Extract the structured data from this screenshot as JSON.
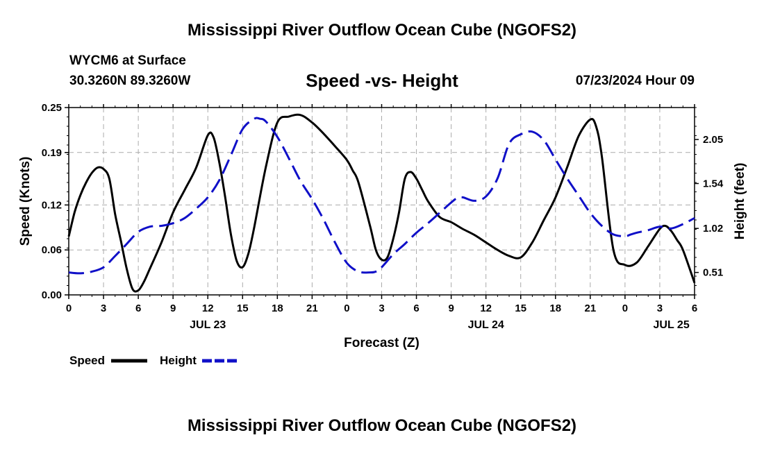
{
  "header": {
    "title": "Mississippi River Outflow Ocean Cube (NGOFS2)",
    "station": "WYCM6 at Surface",
    "coords": "30.3260N  89.3260W",
    "subtitle": "Speed -vs- Height",
    "datetime": "07/23/2024 Hour 09"
  },
  "footer": {
    "title": "Mississippi River Outflow Ocean Cube (NGOFS2)"
  },
  "colors": {
    "speed": "#000000",
    "height": "#1010c8",
    "grid": "#aaaaaa"
  },
  "chart_data": {
    "type": "line",
    "xlabel": "Forecast (Z)",
    "ylabel": "Speed (Knots)",
    "y2label": "Height (feet)",
    "xlim": [
      0,
      54
    ],
    "ylim": [
      0,
      0.25
    ],
    "y2lim": [
      0.25,
      2.42
    ],
    "x_ticks": [
      0,
      3,
      6,
      9,
      12,
      15,
      18,
      21,
      24,
      27,
      30,
      33,
      36,
      39,
      42,
      45,
      48,
      51,
      54
    ],
    "x_tick_labels": [
      "0",
      "3",
      "6",
      "9",
      "12",
      "15",
      "18",
      "21",
      "0",
      "3",
      "6",
      "9",
      "12",
      "15",
      "18",
      "21",
      "0",
      "3",
      "6"
    ],
    "date_labels": [
      {
        "x": 12,
        "label": "JUL 23"
      },
      {
        "x": 36,
        "label": "JUL 24"
      },
      {
        "x": 52,
        "label": "JUL 25"
      }
    ],
    "y_ticks": [
      0,
      0.06,
      0.12,
      0.19,
      0.25
    ],
    "y_tick_labels": [
      "0.00",
      "0.06",
      "0.12",
      "0.19",
      "0.25"
    ],
    "y2_ticks": [
      0.51,
      1.02,
      1.54,
      2.05
    ],
    "y2_tick_labels": [
      "0.51",
      "1.02",
      "1.54",
      "2.05"
    ],
    "series": [
      {
        "name": "Speed",
        "axis": "left",
        "style": "solid",
        "x": [
          0,
          0.5,
          1,
          1.5,
          2,
          2.5,
          3,
          3.5,
          4,
          4.5,
          5,
          5.5,
          6,
          6.5,
          7,
          8,
          9,
          10,
          11,
          12,
          12.5,
          13,
          13.5,
          14,
          14.5,
          15,
          15.5,
          16,
          17,
          18,
          19,
          20,
          21,
          22,
          23,
          24,
          24.5,
          25,
          26,
          26.5,
          27,
          27.5,
          28,
          28.5,
          29,
          29.5,
          30,
          30.5,
          31,
          32,
          33,
          34,
          35,
          36,
          37,
          38,
          39,
          40,
          41,
          42,
          43,
          44,
          45,
          45.5,
          46,
          47,
          48,
          49,
          50,
          51,
          51.5,
          52,
          52.5,
          53,
          54
        ],
        "values": [
          0.078,
          0.11,
          0.133,
          0.15,
          0.163,
          0.17,
          0.168,
          0.155,
          0.108,
          0.072,
          0.035,
          0.008,
          0.006,
          0.018,
          0.035,
          0.07,
          0.11,
          0.14,
          0.17,
          0.213,
          0.21,
          0.176,
          0.13,
          0.08,
          0.045,
          0.037,
          0.055,
          0.09,
          0.17,
          0.23,
          0.238,
          0.24,
          0.23,
          0.215,
          0.198,
          0.18,
          0.166,
          0.15,
          0.092,
          0.06,
          0.047,
          0.05,
          0.075,
          0.11,
          0.155,
          0.164,
          0.155,
          0.14,
          0.125,
          0.104,
          0.097,
          0.088,
          0.08,
          0.07,
          0.06,
          0.052,
          0.05,
          0.07,
          0.1,
          0.13,
          0.17,
          0.212,
          0.234,
          0.225,
          0.185,
          0.06,
          0.04,
          0.043,
          0.065,
          0.088,
          0.092,
          0.085,
          0.073,
          0.06,
          0.016
        ]
      },
      {
        "name": "Height",
        "axis": "right",
        "style": "dashed",
        "x": [
          0,
          1,
          2,
          3,
          4,
          5,
          6,
          7,
          8,
          9,
          10,
          11,
          12,
          13,
          14,
          15,
          16,
          16.5,
          17,
          18,
          19,
          20,
          21,
          22,
          23,
          24,
          25,
          26,
          26.5,
          27,
          28,
          29,
          30,
          31,
          32,
          33,
          33.5,
          34,
          35,
          36,
          37,
          38,
          39,
          40,
          41,
          42,
          43,
          44,
          45,
          46,
          47,
          48,
          48.5,
          49,
          50,
          51,
          52,
          53,
          54
        ],
        "values": [
          0.51,
          0.5,
          0.52,
          0.57,
          0.7,
          0.84,
          0.98,
          1.04,
          1.05,
          1.08,
          1.14,
          1.25,
          1.38,
          1.58,
          1.87,
          2.17,
          2.29,
          2.29,
          2.26,
          2.08,
          1.83,
          1.57,
          1.36,
          1.12,
          0.85,
          0.62,
          0.52,
          0.51,
          0.52,
          0.57,
          0.72,
          0.84,
          0.97,
          1.08,
          1.2,
          1.32,
          1.37,
          1.38,
          1.34,
          1.39,
          1.6,
          2.0,
          2.11,
          2.14,
          2.04,
          1.82,
          1.6,
          1.4,
          1.2,
          1.05,
          0.95,
          0.93,
          0.95,
          0.97,
          1.0,
          1.04,
          1.02,
          1.07,
          1.14
        ]
      }
    ],
    "legend": {
      "position": "bottom-left",
      "entries": [
        {
          "label": "Speed",
          "style": "solid"
        },
        {
          "label": "Height",
          "style": "dashed"
        }
      ]
    },
    "grid": true
  }
}
